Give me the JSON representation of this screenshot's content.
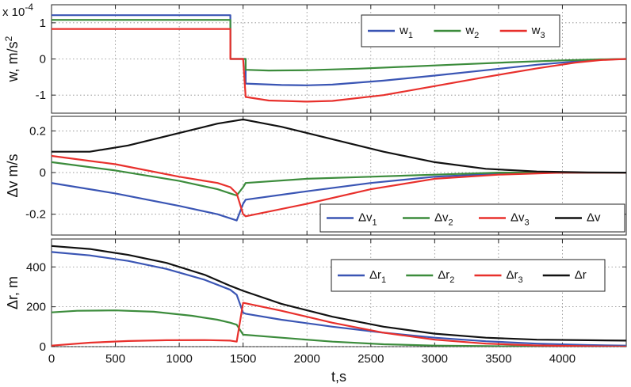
{
  "chart_data": [
    {
      "type": "line",
      "ylabel": "w, m/s",
      "ylabel_sup": "2",
      "exponent_label": "x 10",
      "exponent_power": "-4",
      "xlim": [
        0,
        4500
      ],
      "ylim": [
        -1.5,
        1.5
      ],
      "yticks": [
        -1,
        0,
        1
      ],
      "ytick_labels": [
        "-1",
        "0",
        "1"
      ],
      "xticks": [
        0,
        500,
        1000,
        1500,
        2000,
        2500,
        3000,
        3500,
        4000
      ],
      "xtick_labels": [],
      "legend_position": "top-right",
      "legend_layout": "row",
      "series": [
        {
          "name": "w",
          "sub": "1",
          "color": "#3a55b4",
          "x": [
            0,
            1400,
            1400,
            1420,
            1520,
            1520,
            1800,
            2000,
            2200,
            2600,
            3000,
            3400,
            3800,
            4100,
            4300,
            4500
          ],
          "y": [
            1.21,
            1.21,
            0,
            0,
            0,
            -0.68,
            -0.72,
            -0.73,
            -0.71,
            -0.6,
            -0.46,
            -0.31,
            -0.16,
            -0.07,
            -0.02,
            0
          ]
        },
        {
          "name": "w",
          "sub": "2",
          "color": "#3c8c3c",
          "x": [
            0,
            1400,
            1400,
            1420,
            1520,
            1520,
            1700,
            2000,
            2400,
            2800,
            3200,
            3600,
            4000,
            4300,
            4500
          ],
          "y": [
            1.08,
            1.08,
            0,
            0,
            0,
            -0.3,
            -0.32,
            -0.31,
            -0.27,
            -0.21,
            -0.15,
            -0.09,
            -0.04,
            -0.01,
            0
          ]
        },
        {
          "name": "w",
          "sub": "3",
          "color": "#e8302c",
          "x": [
            0,
            1400,
            1400,
            1420,
            1500,
            1520,
            1700,
            2000,
            2200,
            2600,
            3000,
            3400,
            3800,
            4100,
            4300,
            4500
          ],
          "y": [
            0.83,
            0.83,
            0,
            0,
            0,
            -1.05,
            -1.15,
            -1.18,
            -1.16,
            -1.0,
            -0.75,
            -0.5,
            -0.26,
            -0.1,
            -0.03,
            0
          ]
        }
      ]
    },
    {
      "type": "line",
      "ylabel": "Δv m/s",
      "xlim": [
        0,
        4500
      ],
      "ylim": [
        -0.3,
        0.27
      ],
      "yticks": [
        -0.2,
        0,
        0.2
      ],
      "ytick_labels": [
        "-0.2",
        "0",
        "0.2"
      ],
      "xticks": [
        0,
        500,
        1000,
        1500,
        2000,
        2500,
        3000,
        3500,
        4000
      ],
      "xtick_labels": [],
      "legend_position": "bottom-right",
      "legend_layout": "row",
      "series": [
        {
          "name": "Δv",
          "sub": "1",
          "color": "#3a55b4",
          "x": [
            0,
            500,
            1000,
            1300,
            1400,
            1450,
            1500,
            1520,
            2000,
            2500,
            3000,
            3500,
            4000,
            4500
          ],
          "y": [
            -0.05,
            -0.1,
            -0.16,
            -0.2,
            -0.22,
            -0.23,
            -0.15,
            -0.13,
            -0.09,
            -0.05,
            -0.02,
            -0.005,
            0,
            0
          ]
        },
        {
          "name": "Δv",
          "sub": "2",
          "color": "#3c8c3c",
          "x": [
            0,
            500,
            1000,
            1300,
            1400,
            1450,
            1500,
            1520,
            2000,
            2500,
            3000,
            3500,
            4000,
            4500
          ],
          "y": [
            0.05,
            0.01,
            -0.04,
            -0.08,
            -0.1,
            -0.11,
            -0.07,
            -0.05,
            -0.03,
            -0.02,
            -0.01,
            0,
            0,
            0
          ]
        },
        {
          "name": "Δv",
          "sub": "3",
          "color": "#e8302c",
          "x": [
            0,
            500,
            1000,
            1300,
            1400,
            1450,
            1500,
            1520,
            2000,
            2500,
            3000,
            3500,
            4000,
            4500
          ],
          "y": [
            0.08,
            0.04,
            -0.02,
            -0.05,
            -0.07,
            -0.1,
            -0.2,
            -0.21,
            -0.15,
            -0.08,
            -0.03,
            -0.01,
            0,
            0
          ]
        },
        {
          "name": "Δv",
          "sub": "",
          "color": "#111111",
          "x": [
            0,
            300,
            600,
            1000,
            1300,
            1500,
            1800,
            2200,
            2600,
            3000,
            3400,
            3800,
            4200,
            4500
          ],
          "y": [
            0.1,
            0.1,
            0.13,
            0.19,
            0.235,
            0.255,
            0.22,
            0.16,
            0.1,
            0.05,
            0.018,
            0.005,
            0.001,
            0
          ]
        }
      ]
    },
    {
      "type": "line",
      "ylabel": "Δr, m",
      "xlabel": "t,s",
      "xlim": [
        0,
        4500
      ],
      "ylim": [
        0,
        540
      ],
      "yticks": [
        0,
        200,
        400
      ],
      "ytick_labels": [
        "0",
        "200",
        "400"
      ],
      "xticks": [
        0,
        500,
        1000,
        1500,
        2000,
        2500,
        3000,
        3500,
        4000
      ],
      "xtick_labels": [
        "0",
        "500",
        "1000",
        "1500",
        "2000",
        "2500",
        "3000",
        "3500",
        "4000"
      ],
      "legend_position": "top-right",
      "legend_layout": "row",
      "series": [
        {
          "name": "Δr",
          "sub": "1",
          "color": "#3a55b4",
          "x": [
            0,
            300,
            600,
            900,
            1200,
            1400,
            1450,
            1500,
            1520,
            1800,
            2200,
            2600,
            3000,
            3400,
            3800,
            4200,
            4500
          ],
          "y": [
            475,
            458,
            430,
            390,
            335,
            285,
            260,
            170,
            165,
            135,
            100,
            70,
            45,
            27,
            15,
            8,
            5
          ]
        },
        {
          "name": "Δr",
          "sub": "2",
          "color": "#3c8c3c",
          "x": [
            0,
            200,
            500,
            800,
            1100,
            1300,
            1400,
            1450,
            1500,
            1800,
            2200,
            2600,
            3000,
            3500,
            4000,
            4500
          ],
          "y": [
            172,
            180,
            182,
            175,
            155,
            135,
            120,
            110,
            60,
            45,
            25,
            12,
            5,
            2,
            0,
            0
          ]
        },
        {
          "name": "Δr",
          "sub": "3",
          "color": "#e8302c",
          "x": [
            0,
            300,
            600,
            900,
            1200,
            1400,
            1450,
            1500,
            1800,
            2200,
            2600,
            3000,
            3400,
            3800,
            4200,
            4500
          ],
          "y": [
            5,
            20,
            28,
            32,
            33,
            30,
            25,
            220,
            180,
            120,
            70,
            35,
            15,
            6,
            2,
            0
          ]
        },
        {
          "name": "Δr",
          "sub": "",
          "color": "#111111",
          "x": [
            0,
            300,
            600,
            900,
            1200,
            1400,
            1500,
            1800,
            2200,
            2600,
            3000,
            3400,
            3800,
            4200,
            4500
          ],
          "y": [
            505,
            490,
            460,
            420,
            360,
            305,
            280,
            215,
            150,
            100,
            65,
            45,
            35,
            32,
            30
          ]
        }
      ]
    }
  ]
}
